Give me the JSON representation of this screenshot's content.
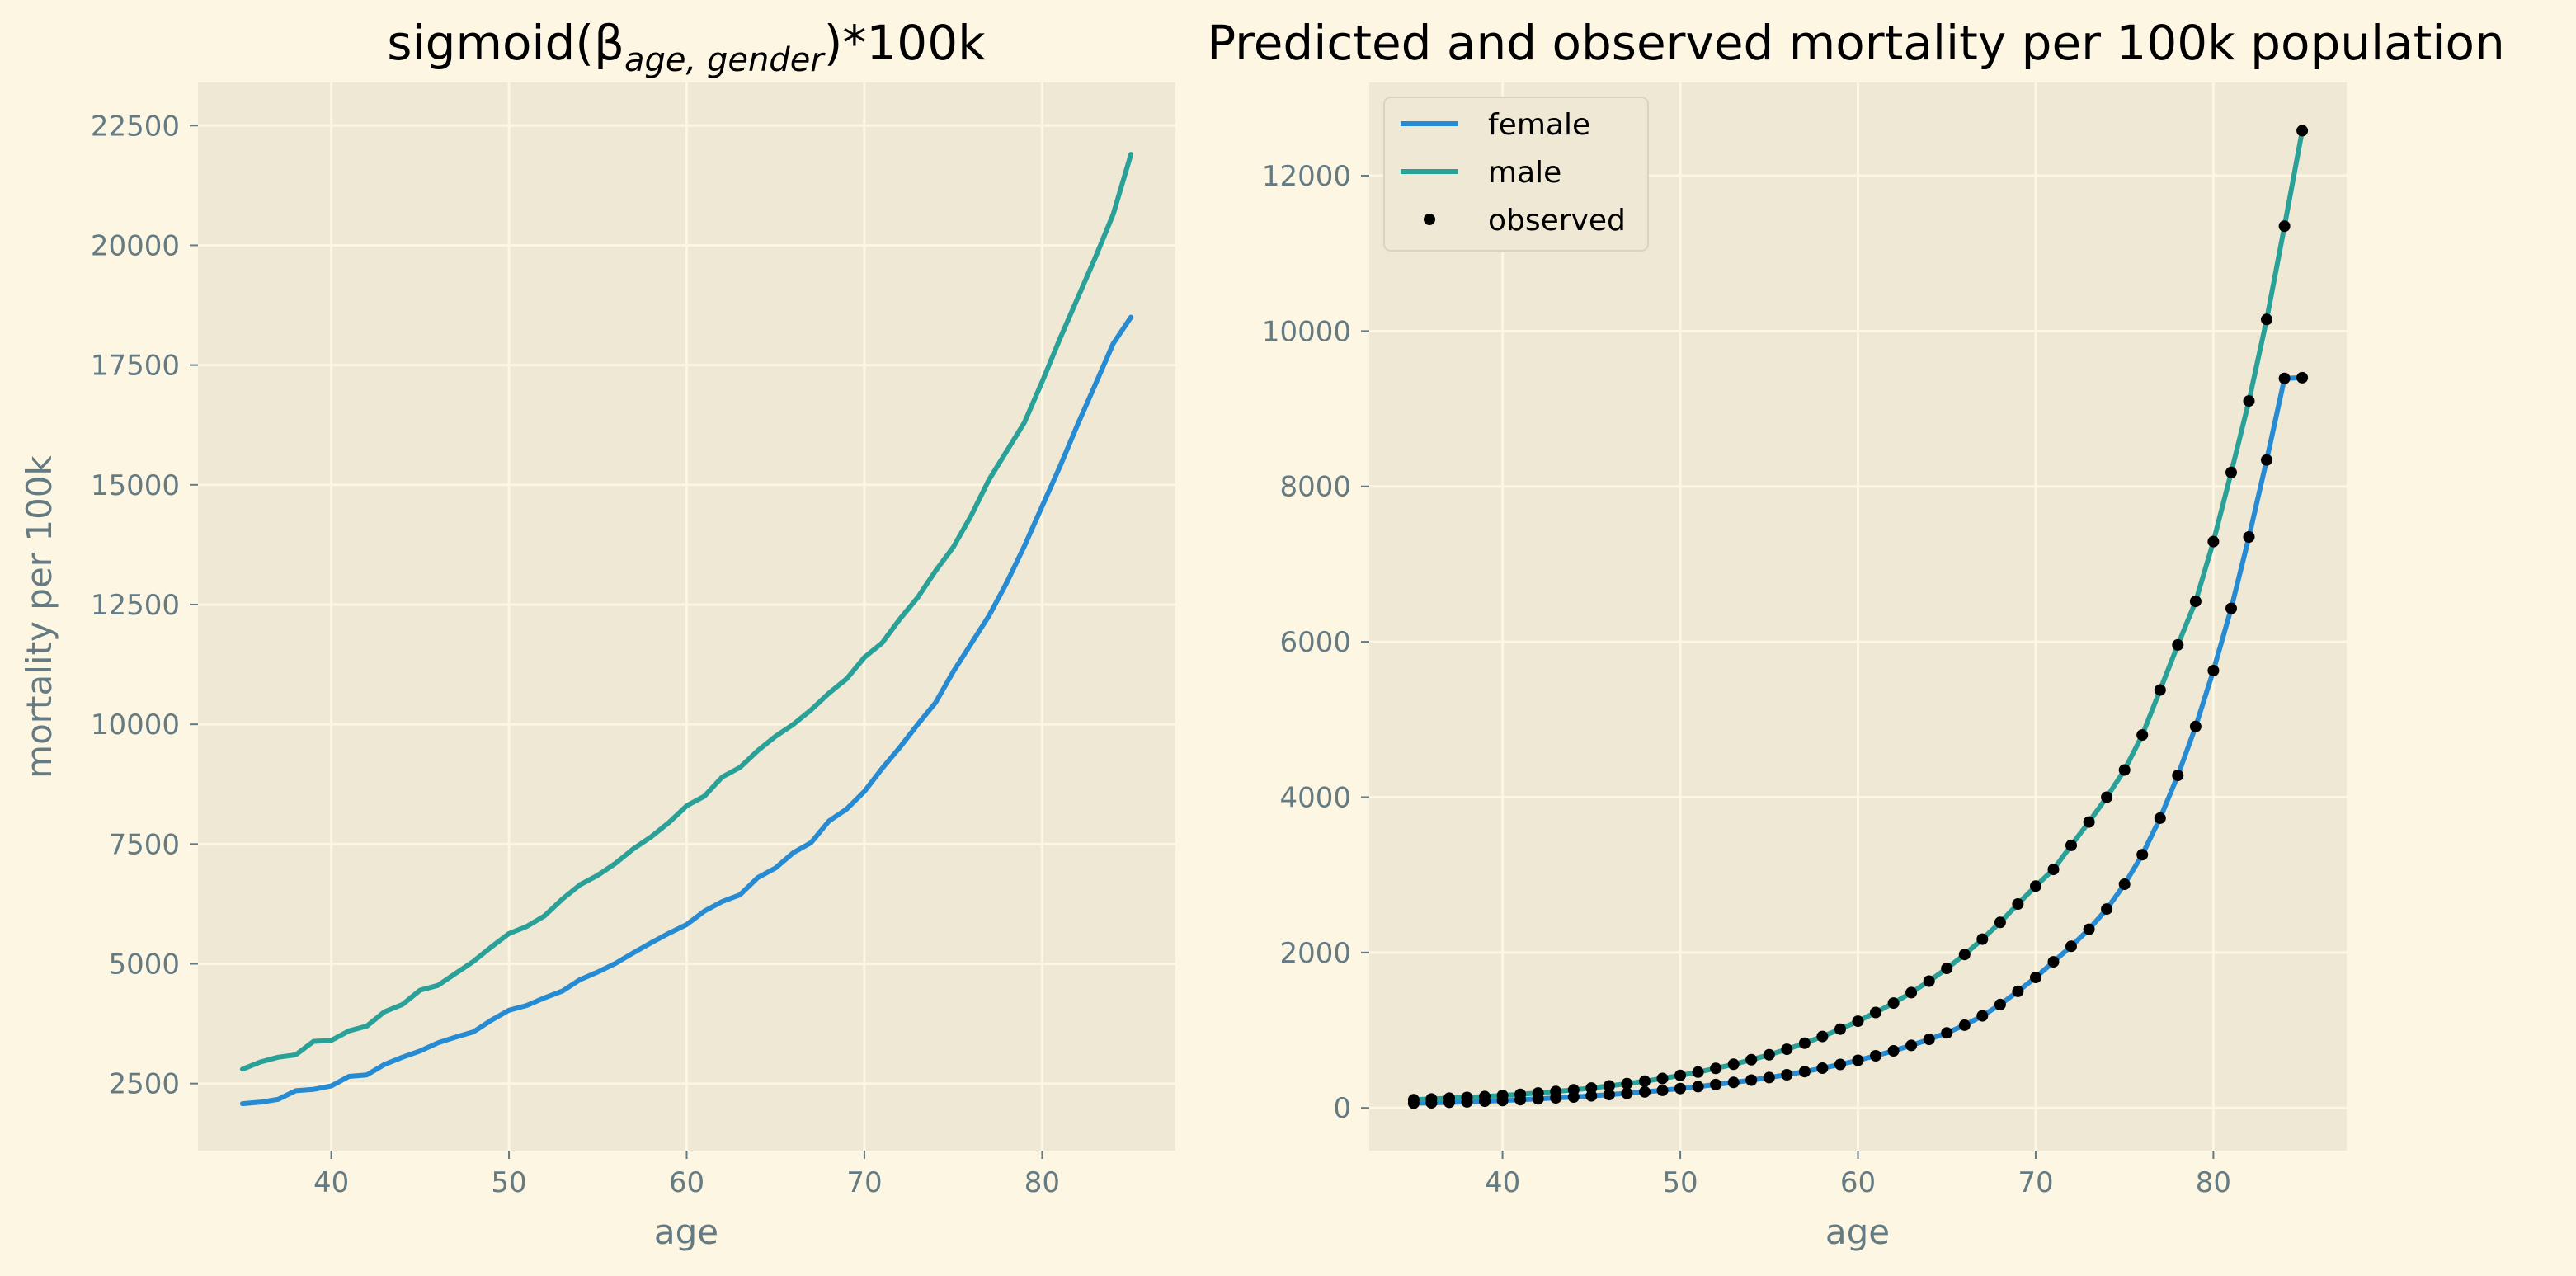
{
  "colors": {
    "female": "#268bd2",
    "male": "#2aa198",
    "observed": "#000000",
    "background": "#fdf6e3",
    "plot_background": "#eee8d5",
    "tick_text": "#657b83"
  },
  "chart_data": [
    {
      "type": "line",
      "title": "sigmoid(β",
      "title_subscript": "age, gender",
      "title_suffix": ")*100k",
      "xlabel": "age",
      "ylabel": "mortality per 100k",
      "xlim": [
        32.5,
        87.5
      ],
      "ylim": [
        1100,
        23400
      ],
      "grid": true,
      "xticks": [
        40,
        50,
        60,
        70,
        80
      ],
      "xtick_labels": [
        "40",
        "50",
        "60",
        "70",
        "80"
      ],
      "yticks": [
        2500,
        5000,
        7500,
        10000,
        12500,
        15000,
        17500,
        20000,
        22500
      ],
      "ytick_labels": [
        "2500",
        "5000",
        "7500",
        "10000",
        "12500",
        "15000",
        "17500",
        "20000",
        "22500"
      ],
      "x": [
        35,
        36,
        37,
        38,
        39,
        40,
        41,
        42,
        43,
        44,
        45,
        46,
        47,
        48,
        49,
        50,
        51,
        52,
        53,
        54,
        55,
        56,
        57,
        58,
        59,
        60,
        61,
        62,
        63,
        64,
        65,
        66,
        67,
        68,
        69,
        70,
        71,
        72,
        73,
        74,
        75,
        76,
        77,
        78,
        79,
        80,
        81,
        82,
        83,
        84,
        85
      ],
      "series": [
        {
          "key": "female",
          "values": [
            2080,
            2110,
            2170,
            2350,
            2380,
            2450,
            2650,
            2680,
            2900,
            3050,
            3180,
            3350,
            3470,
            3580,
            3820,
            4030,
            4130,
            4290,
            4430,
            4670,
            4830,
            5010,
            5230,
            5440,
            5640,
            5820,
            6100,
            6300,
            6440,
            6800,
            7000,
            7320,
            7530,
            7980,
            8230,
            8600,
            9080,
            9520,
            10000,
            10450,
            11100,
            11680,
            12260,
            12950,
            13720,
            14550,
            15380,
            16260,
            17100,
            17950,
            18500
          ]
        },
        {
          "key": "male",
          "values": [
            2800,
            2950,
            3050,
            3100,
            3380,
            3400,
            3600,
            3700,
            4000,
            4150,
            4450,
            4550,
            4800,
            5050,
            5350,
            5630,
            5780,
            6000,
            6350,
            6650,
            6850,
            7100,
            7400,
            7650,
            7950,
            8300,
            8500,
            8900,
            9100,
            9450,
            9750,
            10000,
            10300,
            10650,
            10950,
            11400,
            11700,
            12200,
            12650,
            13200,
            13700,
            14350,
            15100,
            15700,
            16300,
            17150,
            18050,
            18900,
            19750,
            20650,
            21900
          ]
        }
      ]
    },
    {
      "type": "line",
      "title": "Predicted and observed mortality per 100k population",
      "xlabel": "age",
      "ylabel": "",
      "xlim": [
        32.5,
        87.5
      ],
      "ylim": [
        -550,
        13200
      ],
      "grid": true,
      "legend_position": "top-left",
      "xticks": [
        40,
        50,
        60,
        70,
        80
      ],
      "xtick_labels": [
        "40",
        "50",
        "60",
        "70",
        "80"
      ],
      "yticks": [
        0,
        2000,
        4000,
        6000,
        8000,
        10000,
        12000
      ],
      "ytick_labels": [
        "0",
        "2000",
        "4000",
        "6000",
        "8000",
        "10000",
        "12000"
      ],
      "x": [
        35,
        36,
        37,
        38,
        39,
        40,
        41,
        42,
        43,
        44,
        45,
        46,
        47,
        48,
        49,
        50,
        51,
        52,
        53,
        54,
        55,
        56,
        57,
        58,
        59,
        60,
        61,
        62,
        63,
        64,
        65,
        66,
        67,
        68,
        69,
        70,
        71,
        72,
        73,
        74,
        75,
        76,
        77,
        78,
        79,
        80,
        81,
        82,
        83,
        84,
        85
      ],
      "series": [
        {
          "key": "female",
          "name": "female",
          "values": [
            60,
            65,
            72,
            78,
            86,
            95,
            106,
            116,
            128,
            140,
            155,
            171,
            188,
            206,
            226,
            249,
            274,
            300,
            328,
            358,
            391,
            427,
            467,
            512,
            560,
            613,
            671,
            735,
            805,
            882,
            966,
            1065,
            1185,
            1330,
            1500,
            1680,
            1880,
            2080,
            2300,
            2560,
            2880,
            3260,
            3730,
            4280,
            4910,
            5630,
            6430,
            7350,
            8340,
            9390,
            9400
          ]
        },
        {
          "key": "male",
          "name": "male",
          "values": [
            105,
            115,
            125,
            135,
            147,
            160,
            175,
            192,
            211,
            232,
            256,
            283,
            312,
            344,
            379,
            418,
            461,
            509,
            562,
            620,
            684,
            755,
            833,
            920,
            1014,
            1116,
            1228,
            1350,
            1484,
            1632,
            1795,
            1975,
            2172,
            2388,
            2625,
            2855,
            3070,
            3380,
            3680,
            4000,
            4350,
            4800,
            5380,
            5960,
            6520,
            7290,
            8180,
            9100,
            10150,
            11350,
            12580
          ]
        }
      ],
      "observed": {
        "name": "observed",
        "female": [
          60,
          65,
          72,
          78,
          86,
          95,
          106,
          116,
          128,
          140,
          155,
          171,
          188,
          206,
          226,
          249,
          274,
          300,
          328,
          358,
          391,
          427,
          467,
          512,
          560,
          613,
          671,
          735,
          805,
          882,
          966,
          1065,
          1185,
          1330,
          1500,
          1680,
          1880,
          2080,
          2300,
          2560,
          2880,
          3260,
          3730,
          4280,
          4910,
          5630,
          6430,
          7350,
          8340,
          9390,
          9400
        ],
        "male": [
          105,
          115,
          125,
          135,
          147,
          160,
          175,
          192,
          211,
          232,
          256,
          283,
          312,
          344,
          379,
          418,
          461,
          509,
          562,
          620,
          684,
          755,
          833,
          920,
          1014,
          1116,
          1228,
          1350,
          1484,
          1632,
          1795,
          1975,
          2172,
          2388,
          2625,
          2855,
          3070,
          3380,
          3680,
          4000,
          4350,
          4800,
          5380,
          5960,
          6520,
          7290,
          8180,
          9100,
          10150,
          11350,
          12580
        ]
      }
    }
  ]
}
